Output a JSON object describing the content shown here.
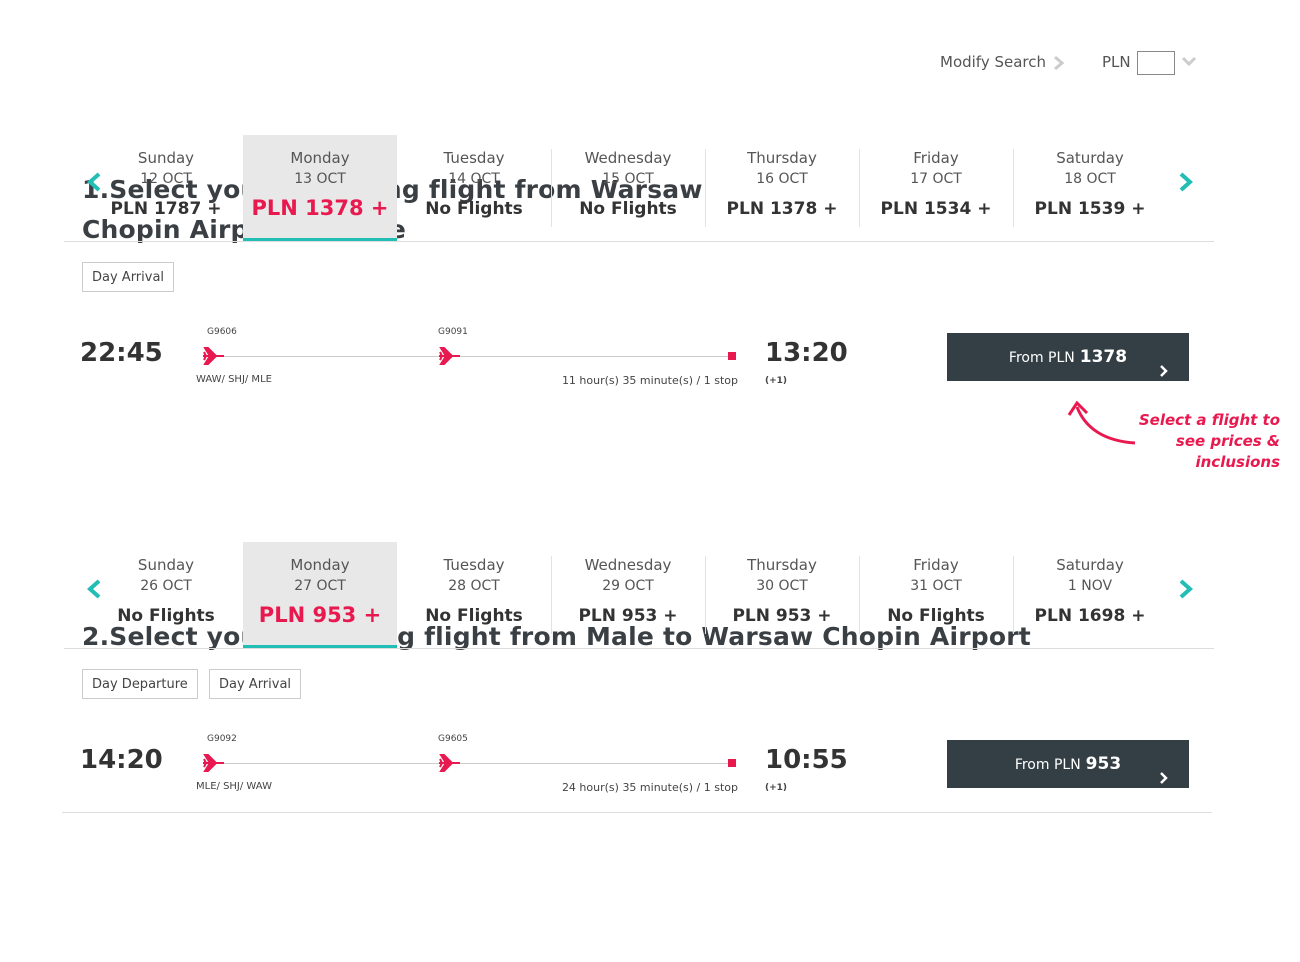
{
  "header": {
    "modify_search": "Modify Search",
    "currency": "PLN"
  },
  "sections": [
    {
      "title": "1.Select your departing flight from Warsaw Chopin Airport to Male",
      "days": [
        {
          "day": "Sunday",
          "date": "12 OCT",
          "price": "PLN 1787 +",
          "selected": false
        },
        {
          "day": "Monday",
          "date": "13 OCT",
          "price": "PLN 1378 +",
          "selected": true
        },
        {
          "day": "Tuesday",
          "date": "14 OCT",
          "price": "No Flights",
          "selected": false
        },
        {
          "day": "Wednesday",
          "date": "15 OCT",
          "price": "No Flights",
          "selected": false
        },
        {
          "day": "Thursday",
          "date": "16 OCT",
          "price": "PLN 1378 +",
          "selected": false
        },
        {
          "day": "Friday",
          "date": "17 OCT",
          "price": "PLN 1534 +",
          "selected": false
        },
        {
          "day": "Saturday",
          "date": "18 OCT",
          "price": "PLN 1539 +",
          "selected": false
        }
      ],
      "filters": [
        "Day Arrival"
      ],
      "flight": {
        "depart": "22:45",
        "arrive": "13:20",
        "next_day": "(+1)",
        "legs": [
          "G9606",
          "G9091"
        ],
        "route": "WAW/ SHJ/ MLE",
        "duration": "11 hour(s) 35 minute(s) / 1 stop",
        "button_prefix": "From PLN",
        "button_price": "1378"
      }
    },
    {
      "title": "2.Select your returning flight from Male to Warsaw Chopin Airport",
      "days": [
        {
          "day": "Sunday",
          "date": "26 OCT",
          "price": "No Flights",
          "selected": false
        },
        {
          "day": "Monday",
          "date": "27 OCT",
          "price": "PLN 953 +",
          "selected": true
        },
        {
          "day": "Tuesday",
          "date": "28 OCT",
          "price": "No Flights",
          "selected": false
        },
        {
          "day": "Wednesday",
          "date": "29 OCT",
          "price": "PLN 953 +",
          "selected": false
        },
        {
          "day": "Thursday",
          "date": "30 OCT",
          "price": "PLN 953 +",
          "selected": false
        },
        {
          "day": "Friday",
          "date": "31 OCT",
          "price": "No Flights",
          "selected": false
        },
        {
          "day": "Saturday",
          "date": "1 NOV",
          "price": "PLN 1698 +",
          "selected": false
        }
      ],
      "filters": [
        "Day Departure",
        "Day Arrival"
      ],
      "flight": {
        "depart": "14:20",
        "arrive": "10:55",
        "next_day": "(+1)",
        "legs": [
          "G9092",
          "G9605"
        ],
        "route": "MLE/ SHJ/ WAW",
        "duration": "24 hour(s) 35 minute(s) / 1 stop",
        "button_prefix": "From PLN",
        "button_price": "953"
      }
    }
  ],
  "annotation": "Select a flight to see prices & inclusions"
}
